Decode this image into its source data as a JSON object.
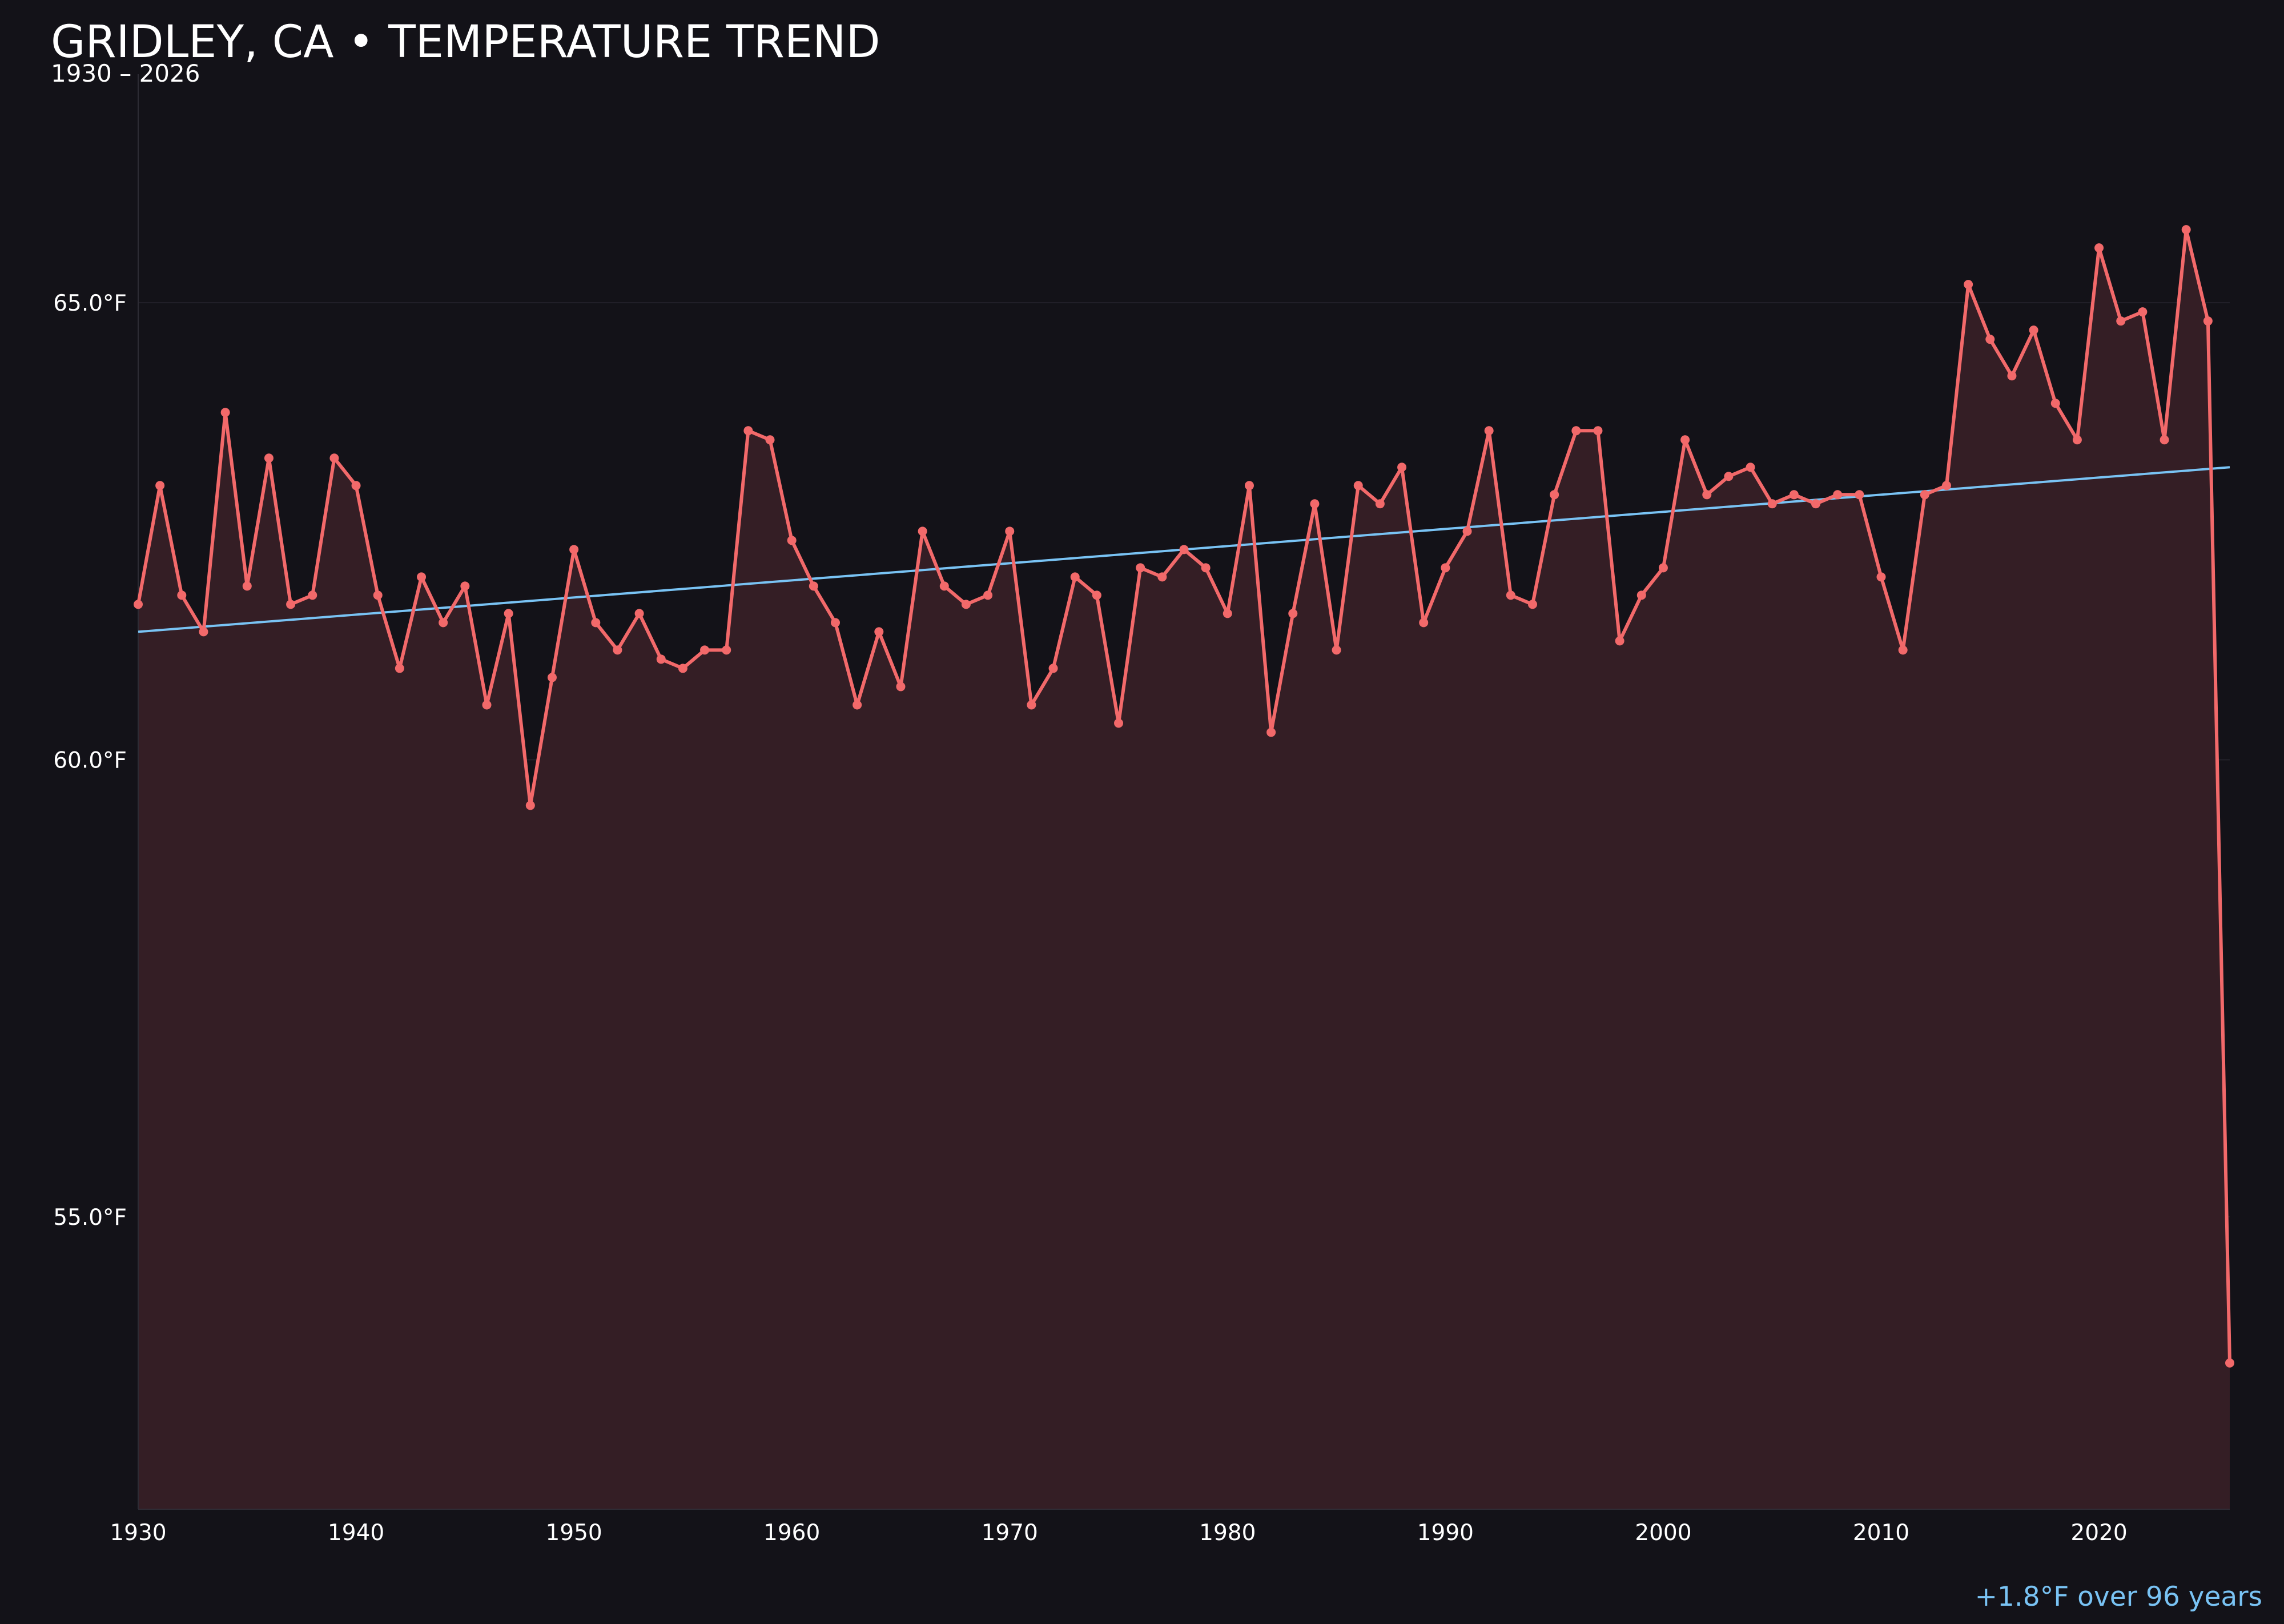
{
  "chart_data": {
    "type": "line",
    "title": "GRIDLEY, CA • TEMPERATURE TREND",
    "subtitle": "1930 – 2026",
    "xlabel": "",
    "ylabel": "",
    "x": [
      1930,
      1931,
      1932,
      1933,
      1934,
      1935,
      1936,
      1937,
      1938,
      1939,
      1940,
      1941,
      1942,
      1943,
      1944,
      1945,
      1946,
      1947,
      1948,
      1949,
      1950,
      1951,
      1952,
      1953,
      1954,
      1955,
      1956,
      1957,
      1958,
      1959,
      1960,
      1961,
      1962,
      1963,
      1964,
      1965,
      1966,
      1967,
      1968,
      1969,
      1970,
      1971,
      1972,
      1973,
      1974,
      1975,
      1976,
      1977,
      1978,
      1979,
      1980,
      1981,
      1982,
      1983,
      1984,
      1985,
      1986,
      1987,
      1988,
      1989,
      1990,
      1991,
      1992,
      1993,
      1994,
      1995,
      1996,
      1997,
      1998,
      1999,
      2000,
      2001,
      2002,
      2003,
      2004,
      2005,
      2006,
      2007,
      2008,
      2009,
      2010,
      2011,
      2012,
      2013,
      2014,
      2015,
      2016,
      2017,
      2018,
      2019,
      2020,
      2021,
      2022,
      2023,
      2024,
      2025,
      2026
    ],
    "series": [
      {
        "values": [
          61.7,
          63.0,
          61.8,
          61.4,
          63.8,
          61.9,
          63.3,
          61.7,
          61.8,
          63.3,
          63.0,
          61.8,
          61.0,
          62.0,
          61.5,
          61.9,
          60.6,
          61.6,
          59.5,
          60.9,
          62.3,
          61.5,
          61.2,
          61.6,
          61.1,
          61.0,
          61.2,
          61.2,
          63.6,
          63.5,
          62.4,
          61.9,
          61.5,
          60.6,
          61.4,
          60.8,
          62.5,
          61.9,
          61.7,
          61.8,
          62.5,
          60.6,
          61.0,
          62.0,
          61.8,
          60.4,
          62.1,
          62.0,
          62.3,
          62.1,
          61.6,
          63.0,
          60.3,
          61.6,
          62.8,
          61.2,
          63.0,
          62.8,
          63.2,
          61.5,
          62.1,
          62.5,
          63.6,
          61.8,
          61.7,
          62.9,
          63.6,
          63.6,
          61.3,
          61.8,
          62.1,
          63.5,
          62.9,
          63.1,
          63.2,
          62.8,
          62.9,
          62.8,
          62.9,
          62.9,
          62.0,
          61.2,
          62.9,
          63.0,
          65.2,
          64.6,
          64.2,
          64.7,
          63.9,
          63.5,
          65.6,
          64.8,
          64.9,
          63.5,
          65.8,
          64.8,
          53.4
        ]
      }
    ],
    "trend": {
      "start_value": 61.4,
      "end_value": 63.2
    },
    "xlim": [
      1930,
      2026
    ],
    "ylim": [
      51.8,
      67.5
    ],
    "x_ticks": [
      1930,
      1940,
      1950,
      1960,
      1970,
      1980,
      1990,
      2000,
      2010,
      2020
    ],
    "y_ticks": [
      {
        "value": 55.0,
        "label": "55.0°F"
      },
      {
        "value": 60.0,
        "label": "60.0°F"
      },
      {
        "value": 65.0,
        "label": "65.0°F"
      }
    ],
    "annotation": "+1.8°F over 96 years",
    "grid": true,
    "colors": {
      "background": "#131218",
      "line": "#f2696a",
      "fill": "#341e25",
      "trend": "#79c3f4",
      "annotation": "#79c3f4",
      "grid": "#23212a",
      "axis": "#2e2c35"
    }
  }
}
